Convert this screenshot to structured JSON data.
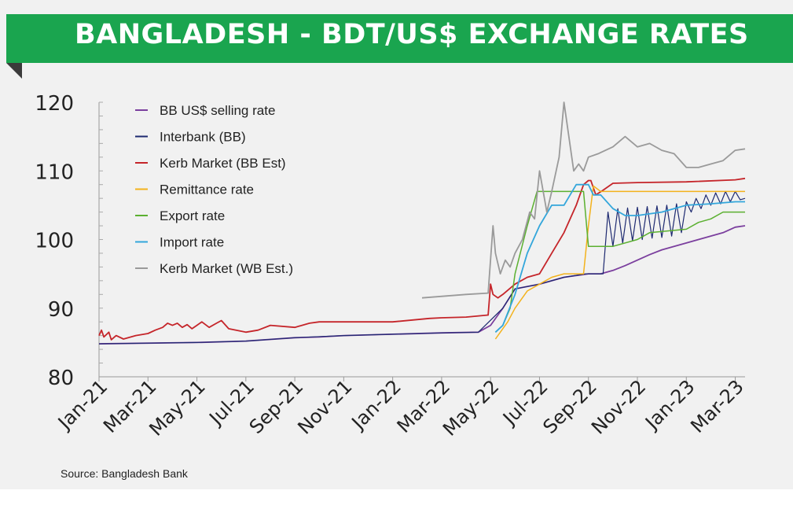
{
  "title": "BANGLADESH - BDT/US$ EXCHANGE RATES",
  "source": "Source: Bangladesh Bank",
  "chart_data": {
    "type": "line",
    "title": "BANGLADESH - BDT/US$ EXCHANGE RATES",
    "xlabel": "",
    "ylabel": "",
    "x_ticks": [
      "Jan-21",
      "Mar-21",
      "May-21",
      "Jul-21",
      "Sep-21",
      "Nov-21",
      "Jan-22",
      "Mar-22",
      "May-22",
      "Jul-22",
      "Sep-22",
      "Nov-22",
      "Jan-23",
      "Mar-23"
    ],
    "x_unit": "month index (0 = Jan-21)",
    "xlim": [
      0,
      26.4
    ],
    "y_ticks": [
      80,
      90,
      100,
      110,
      120
    ],
    "ylim": [
      80,
      120
    ],
    "grid": false,
    "legend": "top-left",
    "series": [
      {
        "name": "BB US$ selling rate",
        "color": "#7b3f9e",
        "width": 1.8,
        "x": [
          0,
          4,
          6,
          8,
          9,
          10,
          12,
          14,
          15.5,
          16,
          16.5,
          17,
          18,
          19,
          20,
          20.5,
          21,
          21.5,
          22,
          22.5,
          23,
          23.5,
          24,
          24.5,
          25,
          25.5,
          26,
          26.4
        ],
        "values": [
          84.8,
          85.0,
          85.2,
          85.7,
          85.8,
          86.0,
          86.2,
          86.4,
          86.5,
          87.5,
          90.0,
          92.8,
          93.5,
          94.5,
          95.0,
          95.0,
          95.5,
          96.2,
          97.0,
          97.8,
          98.5,
          99.0,
          99.5,
          100.0,
          100.5,
          101.0,
          101.8,
          102.0
        ]
      },
      {
        "name": "Interbank (BB)",
        "color": "#1d2970",
        "width": 1.2,
        "x": [
          0,
          4,
          6,
          8,
          10,
          12,
          14,
          15.5,
          16.5,
          17,
          18,
          19,
          19.9,
          20.6,
          20.8,
          21.0,
          21.2,
          21.4,
          21.6,
          21.8,
          22.0,
          22.2,
          22.4,
          22.6,
          22.8,
          23.0,
          23.2,
          23.4,
          23.6,
          23.8,
          24.0,
          24.2,
          24.4,
          24.6,
          24.8,
          25.0,
          25.2,
          25.4,
          25.6,
          25.8,
          26.0,
          26.2,
          26.4
        ],
        "values": [
          84.8,
          85.0,
          85.2,
          85.7,
          86.0,
          86.2,
          86.4,
          86.5,
          90.0,
          92.8,
          93.5,
          94.5,
          95.0,
          95.0,
          104.0,
          99.0,
          104.5,
          99.5,
          104.6,
          99.8,
          104.7,
          100.0,
          104.8,
          100.2,
          104.9,
          100.3,
          105.0,
          100.5,
          105.2,
          101.0,
          105.5,
          104.0,
          106.0,
          104.5,
          106.5,
          105.0,
          106.8,
          105.2,
          107.0,
          105.5,
          107.0,
          105.8,
          106.0
        ]
      },
      {
        "name": "Kerb Market (BB Est)",
        "color": "#c5252a",
        "width": 1.8,
        "x": [
          0,
          0.1,
          0.2,
          0.4,
          0.5,
          0.7,
          1,
          1.5,
          2,
          2.3,
          2.6,
          2.8,
          3,
          3.2,
          3.4,
          3.6,
          3.8,
          4,
          4.2,
          4.5,
          4.8,
          5,
          5.3,
          6,
          6.5,
          7,
          8,
          8.6,
          9,
          10,
          12,
          13.5,
          14,
          15,
          15.9,
          16.0,
          16.1,
          16.3,
          16.5,
          17,
          17.5,
          18,
          18.5,
          19,
          19.5,
          19.8,
          20,
          20.1,
          20.3,
          20.6,
          21,
          22,
          24,
          26,
          26.4
        ],
        "values": [
          86.0,
          86.8,
          85.8,
          86.5,
          85.4,
          86.0,
          85.5,
          86.0,
          86.3,
          86.8,
          87.2,
          87.8,
          87.5,
          87.8,
          87.2,
          87.6,
          87.0,
          87.5,
          88.0,
          87.2,
          87.8,
          88.2,
          87.0,
          86.5,
          86.8,
          87.5,
          87.2,
          87.8,
          88.0,
          88.0,
          88.0,
          88.5,
          88.6,
          88.7,
          89.0,
          93.5,
          92.0,
          91.5,
          92.0,
          93.5,
          94.5,
          95.0,
          98.0,
          101.0,
          105.0,
          108.0,
          108.6,
          108.6,
          106.5,
          107.2,
          108.2,
          108.3,
          108.4,
          108.7,
          108.9
        ]
      },
      {
        "name": "Remittance rate",
        "color": "#f3b21c",
        "width": 1.5,
        "x": [
          16.2,
          16.4,
          16.7,
          17,
          17.5,
          18,
          18.5,
          19,
          19.5,
          19.8,
          20.0,
          20.2,
          20.5,
          21,
          22,
          24,
          26,
          26.4
        ],
        "values": [
          85.5,
          86.5,
          88.0,
          90.0,
          92.5,
          93.5,
          94.5,
          95.0,
          95.0,
          95.0,
          102.0,
          107.8,
          107.0,
          107.0,
          107.0,
          107.0,
          107.0,
          107.0
        ]
      },
      {
        "name": "Export rate",
        "color": "#5bb030",
        "width": 1.5,
        "x": [
          16.2,
          16.5,
          16.8,
          17,
          17.5,
          17.9,
          18.0,
          19.5,
          19.8,
          20.0,
          21.0,
          22,
          22.5,
          24,
          24.5,
          25,
          25.5,
          26.4
        ],
        "values": [
          86.5,
          87.5,
          90.0,
          95.0,
          102.0,
          107.0,
          107.0,
          107.0,
          107.0,
          99.0,
          99.0,
          100.0,
          101.0,
          101.5,
          102.5,
          103.0,
          104.0,
          104.0
        ]
      },
      {
        "name": "Import rate",
        "color": "#33a6db",
        "width": 1.8,
        "x": [
          16.2,
          16.5,
          17,
          17.5,
          18,
          18.5,
          19,
          19.5,
          20,
          20.2,
          20.5,
          21,
          21.5,
          22,
          23,
          24,
          25,
          26,
          26.4
        ],
        "values": [
          86.5,
          87.5,
          92.0,
          98.0,
          102.0,
          105.0,
          105.0,
          108.0,
          108.0,
          106.5,
          106.5,
          104.5,
          103.5,
          103.5,
          104.0,
          105.0,
          105.2,
          105.5,
          105.5
        ]
      },
      {
        "name": "Kerb Market (WB Est.)",
        "color": "#9a9a9a",
        "width": 1.8,
        "x": [
          13.2,
          15,
          15.9,
          16.1,
          16.2,
          16.4,
          16.6,
          16.8,
          17,
          17.3,
          17.6,
          17.8,
          18,
          18.3,
          18.5,
          18.8,
          19,
          19.2,
          19.4,
          19.6,
          19.8,
          20.0,
          20.4,
          21,
          21.5,
          22,
          22.5,
          23,
          23.5,
          24,
          24.5,
          25,
          25.5,
          26,
          26.4
        ],
        "values": [
          91.5,
          92.0,
          92.2,
          102.0,
          98.0,
          95.0,
          97.0,
          96.0,
          98.0,
          100.0,
          104.0,
          103.0,
          110.0,
          104.0,
          107.0,
          112.0,
          120.0,
          115.0,
          110.0,
          111.0,
          110.0,
          112.0,
          112.5,
          113.5,
          115.0,
          113.5,
          114.0,
          113.0,
          112.5,
          110.5,
          110.5,
          111.0,
          111.5,
          113.0,
          113.2
        ]
      }
    ]
  }
}
